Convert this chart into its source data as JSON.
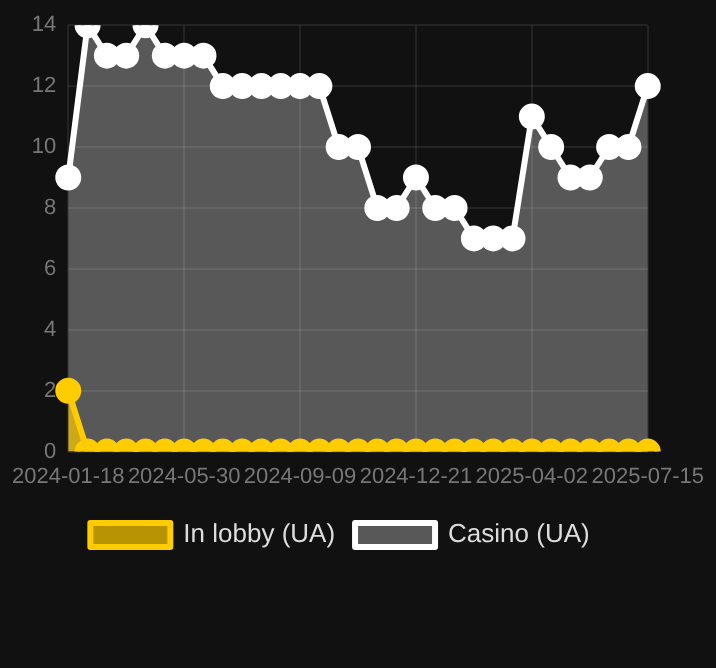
{
  "chart_data": {
    "type": "area",
    "categories": [
      "2024-01-18",
      null,
      null,
      null,
      null,
      null,
      "2024-05-30",
      null,
      null,
      null,
      null,
      null,
      "2024-09-09",
      null,
      null,
      null,
      null,
      null,
      "2024-12-21",
      null,
      null,
      null,
      null,
      null,
      "2025-04-02",
      null,
      null,
      null,
      null,
      null,
      "2025-07-15"
    ],
    "series": [
      {
        "name": "In lobby (UA)",
        "color": "#ffcc00",
        "values": [
          2,
          0,
          0,
          0,
          0,
          0,
          0,
          0,
          0,
          0,
          0,
          0,
          0,
          0,
          0,
          0,
          0,
          0,
          0,
          0,
          0,
          0,
          0,
          0,
          0,
          0,
          0,
          0,
          0,
          0,
          0
        ]
      },
      {
        "name": "Casino (UA)",
        "color": "#ffffff",
        "values": [
          9,
          14,
          13,
          13,
          14,
          13,
          13,
          13,
          12,
          12,
          12,
          12,
          12,
          12,
          10,
          10,
          8,
          8,
          9,
          8,
          8,
          7,
          7,
          7,
          11,
          10,
          9,
          9,
          10,
          10,
          12
        ]
      }
    ],
    "ylim": [
      0,
      14
    ],
    "yticks": [
      0,
      2,
      4,
      6,
      8,
      10,
      12,
      14
    ],
    "grid": true,
    "legend": "bottom",
    "marker": "circle"
  }
}
